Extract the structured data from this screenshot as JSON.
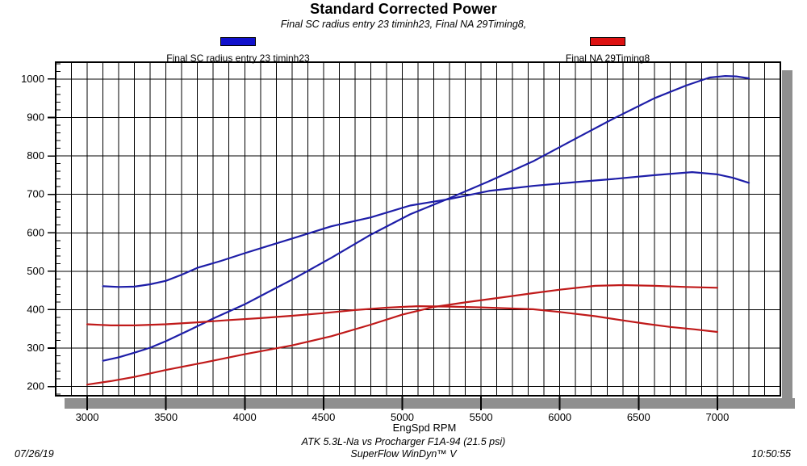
{
  "header": {
    "title": "Standard Corrected Power",
    "subtitle": "Final SC radius entry 23 timinh23, Final NA 29Timing8,"
  },
  "legend": [
    {
      "label": "Final SC radius entry 23 timinh23",
      "color": "#1111cc"
    },
    {
      "label": "Final NA 29Timing8",
      "color": "#dd1111"
    }
  ],
  "footer": {
    "test_name": "ATK 5.3L-Na vs Procharger F1A-94 (21.5 psi)",
    "software": "SuperFlow WinDyn™ V",
    "date": "07/26/19",
    "time": "10:50:55"
  },
  "chart_data": {
    "type": "line",
    "title": "Standard Corrected Power",
    "xlabel": "EngSpd RPM",
    "ylabel": "",
    "xlim": [
      2800,
      7400
    ],
    "ylim": [
      176,
      1044
    ],
    "x_ticks": [
      3000,
      3500,
      4000,
      4500,
      5000,
      5500,
      6000,
      6500,
      7000
    ],
    "y_ticks": [
      200,
      300,
      400,
      500,
      600,
      700,
      800,
      900,
      1000
    ],
    "grid": "on",
    "x_grid_step": 100,
    "y_grid_step": 100,
    "y_minor_tick_step": 20,
    "legend_position": "top",
    "colors": {
      "grid": "#000000",
      "frame": "#000000",
      "shadow": "#8f8f8f"
    },
    "series": [
      {
        "name": "Final SC radius entry 23 timinh23 (power)",
        "color": "#1e1ea8",
        "points": [
          [
            3100,
            267
          ],
          [
            3200,
            276
          ],
          [
            3300,
            288
          ],
          [
            3400,
            301
          ],
          [
            3500,
            318
          ],
          [
            3650,
            347
          ],
          [
            3800,
            377
          ],
          [
            4000,
            414
          ],
          [
            4150,
            446
          ],
          [
            4300,
            478
          ],
          [
            4550,
            535
          ],
          [
            4800,
            595
          ],
          [
            5050,
            648
          ],
          [
            5300,
            690
          ],
          [
            5550,
            734
          ],
          [
            5830,
            786
          ],
          [
            6100,
            845
          ],
          [
            6340,
            897
          ],
          [
            6600,
            950
          ],
          [
            6800,
            983
          ],
          [
            6950,
            1004
          ],
          [
            7050,
            1008
          ],
          [
            7120,
            1007
          ],
          [
            7200,
            1002
          ]
        ]
      },
      {
        "name": "Final SC radius entry 23 timinh23 (torque)",
        "color": "#1e1ea8",
        "points": [
          [
            3100,
            461
          ],
          [
            3200,
            459
          ],
          [
            3300,
            460
          ],
          [
            3400,
            466
          ],
          [
            3500,
            475
          ],
          [
            3600,
            491
          ],
          [
            3700,
            509
          ],
          [
            3850,
            527
          ],
          [
            4000,
            547
          ],
          [
            4150,
            566
          ],
          [
            4300,
            585
          ],
          [
            4550,
            617
          ],
          [
            4800,
            640
          ],
          [
            5050,
            671
          ],
          [
            5300,
            688
          ],
          [
            5550,
            709
          ],
          [
            5830,
            722
          ],
          [
            6100,
            732
          ],
          [
            6340,
            740
          ],
          [
            6600,
            750
          ],
          [
            6840,
            758
          ],
          [
            7000,
            752
          ],
          [
            7100,
            743
          ],
          [
            7200,
            730
          ]
        ]
      },
      {
        "name": "Final NA 29Timing8 (power)",
        "color": "#c01a1a",
        "points": [
          [
            3000,
            205
          ],
          [
            3150,
            214
          ],
          [
            3300,
            225
          ],
          [
            3500,
            243
          ],
          [
            3750,
            263
          ],
          [
            4000,
            284
          ],
          [
            4300,
            307
          ],
          [
            4550,
            331
          ],
          [
            4800,
            361
          ],
          [
            5000,
            387
          ],
          [
            5200,
            407
          ],
          [
            5400,
            419
          ],
          [
            5600,
            430
          ],
          [
            5830,
            443
          ],
          [
            6000,
            452
          ],
          [
            6225,
            462
          ],
          [
            6400,
            464
          ],
          [
            6600,
            462
          ],
          [
            6800,
            459
          ],
          [
            7000,
            457
          ]
        ]
      },
      {
        "name": "Final NA 29Timing8 (torque)",
        "color": "#c01a1a",
        "points": [
          [
            3000,
            362
          ],
          [
            3150,
            359
          ],
          [
            3300,
            359
          ],
          [
            3500,
            362
          ],
          [
            3700,
            367
          ],
          [
            3900,
            373
          ],
          [
            4100,
            378
          ],
          [
            4300,
            384
          ],
          [
            4500,
            391
          ],
          [
            4700,
            399
          ],
          [
            4900,
            405
          ],
          [
            5100,
            409
          ],
          [
            5300,
            408
          ],
          [
            5500,
            406
          ],
          [
            5700,
            403
          ],
          [
            5830,
            401
          ],
          [
            6000,
            394
          ],
          [
            6225,
            383
          ],
          [
            6400,
            372
          ],
          [
            6550,
            363
          ],
          [
            6700,
            355
          ],
          [
            6850,
            349
          ],
          [
            7000,
            342
          ]
        ]
      }
    ]
  }
}
